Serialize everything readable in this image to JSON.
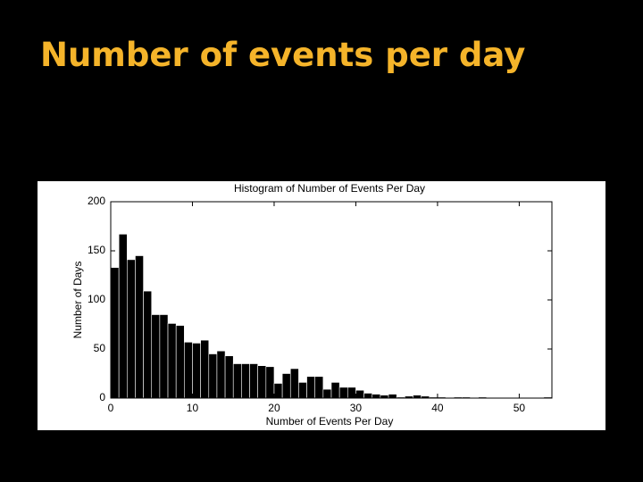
{
  "slide_title": "Number of events per day",
  "chart_data": {
    "type": "histogram",
    "title": "Histogram of Number of Events Per Day",
    "x_label": "Number of Events Per Day",
    "y_label": "Number of Days",
    "bins": [
      0,
      1,
      2,
      3,
      4,
      5,
      6,
      7,
      8,
      9,
      10,
      11,
      12,
      13,
      14,
      15,
      16,
      17,
      18,
      19,
      20,
      21,
      22,
      23,
      24,
      25,
      26,
      27,
      28,
      29,
      30,
      31,
      32,
      33,
      34,
      35,
      36,
      37,
      38,
      39,
      40,
      41,
      42,
      43,
      44,
      45,
      46,
      47,
      48,
      49,
      50,
      51,
      52,
      53,
      54
    ],
    "counts": [
      133,
      167,
      141,
      145,
      109,
      85,
      85,
      76,
      74,
      57,
      56,
      59,
      45,
      48,
      43,
      35,
      35,
      35,
      33,
      32,
      15,
      25,
      30,
      16,
      22,
      22,
      9,
      16,
      11,
      11,
      8,
      5,
      4,
      3,
      4,
      1,
      2,
      3,
      2,
      1,
      1,
      0,
      1,
      1,
      0,
      1,
      0,
      0,
      0,
      0,
      0,
      0,
      0,
      1
    ],
    "color": "#000000",
    "xlim": [
      0,
      54
    ],
    "ylim": [
      0,
      200
    ],
    "xticks": [
      0,
      10,
      20,
      30,
      40,
      50
    ],
    "yticks": [
      0,
      50,
      100,
      150,
      200
    ]
  }
}
